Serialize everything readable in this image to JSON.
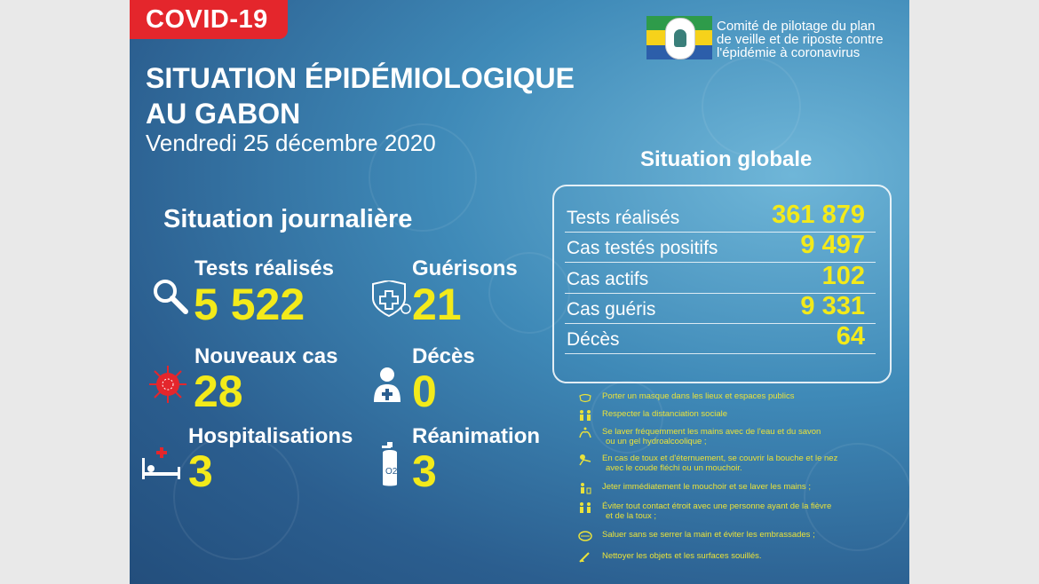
{
  "header": {
    "badge": "COVID-19",
    "title_line1": "SITUATION ÉPIDÉMIOLOGIQUE",
    "title_line2": "AU GABON",
    "date": "Vendredi 25 décembre 2020",
    "committee_line1": "Comité de pilotage du plan",
    "committee_line2": "de veille et de riposte contre",
    "committee_line3": "l'épidémie à coronavirus"
  },
  "daily": {
    "heading": "Situation journalière",
    "tests": {
      "label": "Tests réalisés",
      "value": "5 522",
      "icon": "magnifier-icon"
    },
    "recoveries": {
      "label": "Guérisons",
      "value": "21",
      "icon": "shield-cross-icon"
    },
    "new_cases": {
      "label": "Nouveaux cas",
      "value": "28",
      "icon": "virus-icon"
    },
    "deaths": {
      "label": "Décès",
      "value": "0",
      "icon": "person-cross-icon"
    },
    "hospitalisations": {
      "label": "Hospitalisations",
      "value": "3",
      "icon": "hospital-bed-icon"
    },
    "icu": {
      "label": "Réanimation",
      "value": "3",
      "icon": "oxygen-tank-icon"
    }
  },
  "global": {
    "heading": "Situation globale",
    "rows": [
      {
        "label": "Tests réalisés",
        "value": "361 879"
      },
      {
        "label": "Cas testés positifs",
        "value": "9 497"
      },
      {
        "label": "Cas actifs",
        "value": "102"
      },
      {
        "label": "Cas guéris",
        "value": "9 331"
      },
      {
        "label": "Décès",
        "value": "64"
      }
    ]
  },
  "tips": [
    {
      "line1": "Porter un masque dans les lieux et espaces publics",
      "line2": "",
      "icon": "mask-icon"
    },
    {
      "line1": "Respecter la distanciation sociale",
      "line2": "",
      "icon": "distance-icon"
    },
    {
      "line1": "Se laver fréquemment les mains avec de l'eau et du savon",
      "line2": "ou un gel hydroalcoolique ;",
      "icon": "handwash-icon"
    },
    {
      "line1": "En cas de toux et d'éternuement, se couvrir la bouche et le nez",
      "line2": "avec le coude fléchi ou un mouchoir.",
      "icon": "cough-icon"
    },
    {
      "line1": "Jeter immédiatement le mouchoir et se laver les mains ;",
      "line2": "",
      "icon": "tissue-icon"
    },
    {
      "line1": "Éviter tout contact étroit avec une personne ayant de la fièvre",
      "line2": "et de la toux ;",
      "icon": "avoid-contact-icon"
    },
    {
      "line1": "Saluer sans se serrer la main et éviter les embrassades ;",
      "line2": "",
      "icon": "no-handshake-icon"
    },
    {
      "line1": "Nettoyer les objets et les surfaces souillés.",
      "line2": "",
      "icon": "cleaning-icon"
    }
  ],
  "colors": {
    "accent_yellow": "#f3ea1a",
    "badge_red": "#e4262c",
    "background_blue": "#2b5e8f"
  }
}
